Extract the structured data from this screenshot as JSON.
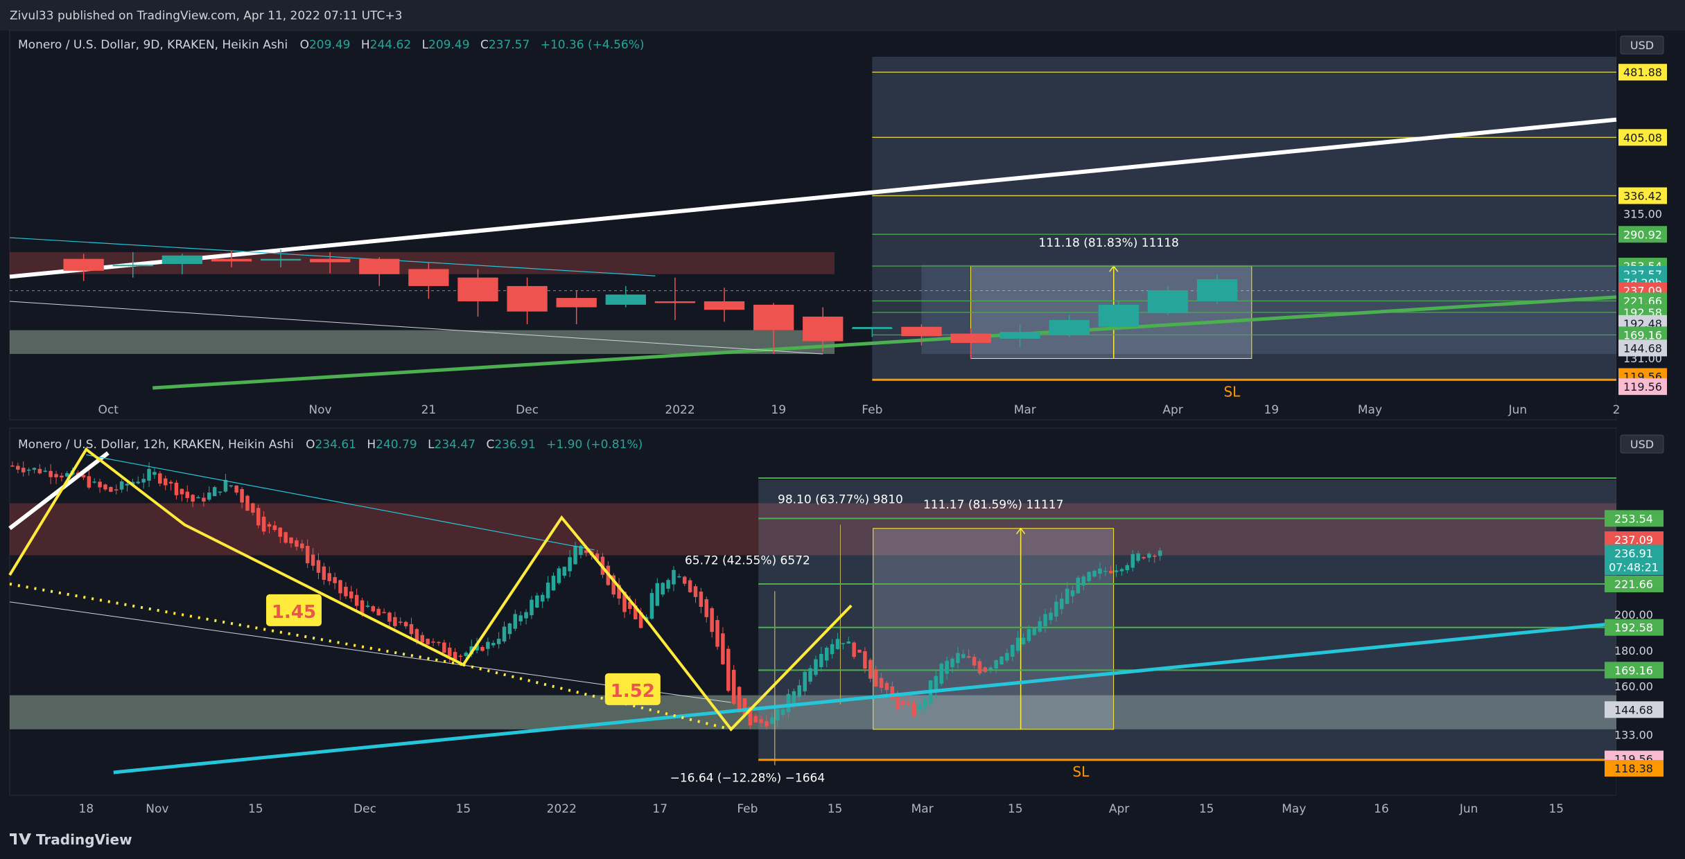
{
  "header": {
    "publish_line": "Zivul33 published on TradingView.com, Apr 11, 2022 07:11 UTC+3"
  },
  "footer": {
    "brand": "TradingView",
    "logo_icon": "tradingview-logo-icon"
  },
  "colors": {
    "background": "#131722",
    "up": "#26a69a",
    "down": "#ef5350",
    "yellow": "#ffeb3b",
    "green_line": "#4caf50",
    "cyan_line": "#26c6da",
    "orange_sl": "#ff9800",
    "white_line": "#ffffff"
  },
  "chart_data": [
    {
      "type": "candlestick",
      "title": "Monero / U.S. Dollar, 9D, KRAKEN, Heikin Ashi",
      "ohlc": {
        "o_label": "O",
        "o": "209.49",
        "h_label": "H",
        "h": "244.62",
        "l_label": "L",
        "l": "209.49",
        "c_label": "C",
        "c": "237.57",
        "change": "+10.36 (+4.56%)"
      },
      "currency": "USD",
      "ylim": [
        110,
        500
      ],
      "x_ticks": [
        "Oct",
        "Nov",
        "21",
        "Dec",
        "2022",
        "19",
        "Feb",
        "Mar",
        "Apr",
        "19",
        "May",
        "Jun",
        "2"
      ],
      "x_tick_pos": [
        0.5,
        4.8,
        7,
        9,
        12.1,
        14.1,
        16,
        19.1,
        22.1,
        24.1,
        26.1,
        29.1,
        31.1
      ],
      "x_range": [
        -1.5,
        31.1
      ],
      "candles": [
        {
          "i": 0,
          "o": 262,
          "h": 268,
          "l": 236,
          "c": 248
        },
        {
          "i": 1,
          "o": 255,
          "h": 270,
          "l": 240,
          "c": 255
        },
        {
          "i": 2,
          "o": 256,
          "h": 268,
          "l": 244,
          "c": 266
        },
        {
          "i": 3,
          "o": 262,
          "h": 272,
          "l": 252,
          "c": 259
        },
        {
          "i": 4,
          "o": 260,
          "h": 273,
          "l": 252,
          "c": 262
        },
        {
          "i": 5,
          "o": 262,
          "h": 270,
          "l": 245,
          "c": 258
        },
        {
          "i": 6,
          "o": 262,
          "h": 264,
          "l": 230,
          "c": 244
        },
        {
          "i": 7,
          "o": 250,
          "h": 258,
          "l": 215,
          "c": 230
        },
        {
          "i": 8,
          "o": 240,
          "h": 250,
          "l": 194,
          "c": 212
        },
        {
          "i": 9,
          "o": 230,
          "h": 240,
          "l": 185,
          "c": 200
        },
        {
          "i": 10,
          "o": 216,
          "h": 225,
          "l": 185,
          "c": 205
        },
        {
          "i": 11,
          "o": 208,
          "h": 230,
          "l": 205,
          "c": 220
        },
        {
          "i": 12,
          "o": 212,
          "h": 240,
          "l": 190,
          "c": 210
        },
        {
          "i": 13,
          "o": 212,
          "h": 228,
          "l": 188,
          "c": 202
        },
        {
          "i": 14,
          "o": 208,
          "h": 210,
          "l": 150,
          "c": 178
        },
        {
          "i": 15,
          "o": 194,
          "h": 205,
          "l": 153,
          "c": 165
        },
        {
          "i": 16,
          "o": 180,
          "h": 182,
          "l": 170,
          "c": 181
        },
        {
          "i": 17,
          "o": 182,
          "h": 185,
          "l": 160,
          "c": 171
        },
        {
          "i": 18,
          "o": 174,
          "h": 180,
          "l": 144,
          "c": 163
        },
        {
          "i": 19,
          "o": 168,
          "h": 185,
          "l": 158,
          "c": 176
        },
        {
          "i": 20,
          "o": 172,
          "h": 196,
          "l": 170,
          "c": 190
        },
        {
          "i": 21,
          "o": 182,
          "h": 212,
          "l": 180,
          "c": 208
        },
        {
          "i": 22,
          "o": 198,
          "h": 230,
          "l": 196,
          "c": 225
        },
        {
          "i": 23,
          "o": 212,
          "h": 244,
          "l": 209,
          "c": 238
        }
      ],
      "price_levels": [
        {
          "label": "481.88",
          "value": 481.88,
          "color": "#ffeb3b",
          "text_color": "#131722"
        },
        {
          "label": "405.08",
          "value": 405.08,
          "color": "#ffeb3b",
          "text_color": "#131722"
        },
        {
          "label": "336.42",
          "value": 336.42,
          "color": "#ffeb3b",
          "text_color": "#131722"
        },
        {
          "label": "315.00",
          "value": 315.0,
          "color": "",
          "text_color": "#d1d4dc"
        },
        {
          "label": "290.92",
          "value": 290.92,
          "color": "#4caf50",
          "text_color": "#ffffff"
        },
        {
          "label": "253.54",
          "value": 253.54,
          "color": "#4caf50",
          "text_color": "#ffffff"
        },
        {
          "label": "237.57",
          "value": 243.8,
          "color": "#26a69a",
          "text_color": "#ffffff"
        },
        {
          "label": "7d 20h",
          "value": 234.0,
          "color": "#26a69a",
          "text_color": "#ffffff"
        },
        {
          "label": "237.09",
          "value": 224.5,
          "color": "#ef5350",
          "text_color": "#ffffff"
        },
        {
          "label": "221.66",
          "value": 212.5,
          "color": "#4caf50",
          "text_color": "#ffffff"
        },
        {
          "label": "192.58",
          "value": 199.0,
          "color": "#4caf50",
          "text_color": "#ffffff"
        },
        {
          "label": "192.48",
          "value": 186.0,
          "color": "#d1d4dc",
          "text_color": "#131722"
        },
        {
          "label": "169.16",
          "value": 172.5,
          "color": "#4caf50",
          "text_color": "#ffffff"
        },
        {
          "label": "144.68",
          "value": 157.0,
          "color": "#d1d4dc",
          "text_color": "#131722"
        },
        {
          "label": "131.00",
          "value": 145.0,
          "color": "",
          "text_color": "#d1d4dc"
        },
        {
          "label": "119.56",
          "value": 123.5,
          "color": "#ff9800",
          "text_color": "#131722"
        },
        {
          "label": "119.56",
          "value": 111.5,
          "color": "#f8bbd0",
          "text_color": "#131722"
        }
      ],
      "measure_label": "111.18 (81.83%) 11118",
      "sl_label": "SL"
    },
    {
      "type": "candlestick",
      "title": "Monero / U.S. Dollar, 12h, KRAKEN, Heikin Ashi",
      "ohlc": {
        "o_label": "O",
        "o": "234.61",
        "h_label": "H",
        "h": "240.79",
        "l_label": "L",
        "l": "234.47",
        "c_label": "C",
        "c": "236.91",
        "change": "+1.90 (+0.81%)"
      },
      "currency": "USD",
      "ylim": [
        112,
        300
      ],
      "x_ticks": [
        "18",
        "Nov",
        "15",
        "Dec",
        "15",
        "2022",
        "17",
        "Feb",
        "15",
        "Mar",
        "15",
        "Apr",
        "15",
        "May",
        "16",
        "Jun",
        "15"
      ],
      "x_tick_pos": [
        -8,
        5,
        23,
        43,
        61,
        79,
        97,
        113,
        129,
        145,
        162,
        181,
        197,
        213,
        229,
        245,
        261
      ],
      "x_range": [
        -22,
        272
      ],
      "wave_labels": [
        "1.45",
        "1.52"
      ],
      "measure_labels": [
        "98.10 (63.77%) 9810",
        "111.17 (81.59%) 11117",
        "65.72 (42.55%) 6572",
        "−16.64 (−12.28%) −1664"
      ],
      "price_levels": [
        {
          "label": "253.54",
          "value": 253.54,
          "color": "#4caf50",
          "text_color": "#ffffff"
        },
        {
          "label": "237.09",
          "value": 241.7,
          "color": "#ef5350",
          "text_color": "#ffffff"
        },
        {
          "label": "236.91",
          "value": 234.2,
          "color": "#26a69a",
          "text_color": "#ffffff"
        },
        {
          "label": "07:48:21",
          "value": 226.5,
          "color": "#26a69a",
          "text_color": "#ffffff"
        },
        {
          "label": "221.66",
          "value": 217.0,
          "color": "#4caf50",
          "text_color": "#ffffff"
        },
        {
          "label": "200.00",
          "value": 200.0,
          "color": "",
          "text_color": "#d1d4dc"
        },
        {
          "label": "192.58",
          "value": 192.8,
          "color": "#4caf50",
          "text_color": "#ffffff"
        },
        {
          "label": "180.00",
          "value": 180.0,
          "color": "",
          "text_color": "#d1d4dc"
        },
        {
          "label": "169.16",
          "value": 169.0,
          "color": "#4caf50",
          "text_color": "#ffffff"
        },
        {
          "label": "160.00",
          "value": 160.0,
          "color": "",
          "text_color": "#d1d4dc"
        },
        {
          "label": "144.68",
          "value": 147.0,
          "color": "#d1d4dc",
          "text_color": "#131722"
        },
        {
          "label": "133.00",
          "value": 133.0,
          "color": "",
          "text_color": "#d1d4dc"
        },
        {
          "label": "119.56",
          "value": 119.5,
          "color": "#f8bbd0",
          "text_color": "#131722"
        },
        {
          "label": "118.38",
          "value": 114.3,
          "color": "#ff9800",
          "text_color": "#131722"
        }
      ],
      "sl_label": "SL"
    }
  ]
}
